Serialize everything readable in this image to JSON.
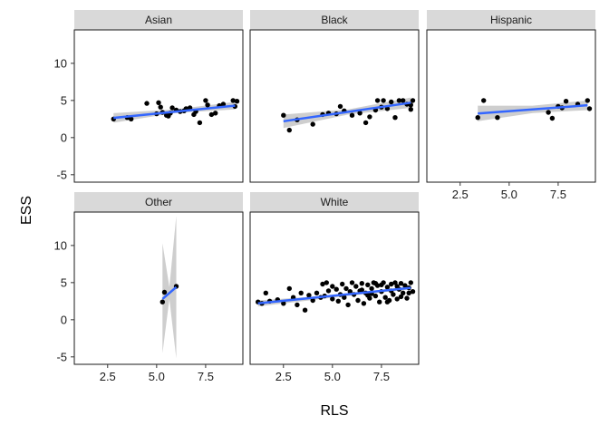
{
  "chart_data": {
    "type": "scatter",
    "facet_layout": {
      "rows": 2,
      "cols": 3
    },
    "xlabel": "RLS",
    "ylabel": "ESS",
    "xlim": [
      0.8,
      9.4
    ],
    "ylim": [
      -6,
      14.5
    ],
    "xticks": [
      2.5,
      5.0,
      7.5
    ],
    "xtick_labels": [
      "2.5",
      "5.0",
      "7.5"
    ],
    "yticks": [
      -5,
      0,
      5,
      10
    ],
    "ytick_labels": [
      "-5",
      "0",
      "5",
      "10"
    ],
    "colors": {
      "points": "#000000",
      "fit_line": "#3366ff",
      "ribbon": "#bdbdbd",
      "strip": "#d9d9d9"
    },
    "panels": [
      {
        "name": "Asian",
        "points": [
          [
            2.8,
            2.5
          ],
          [
            3.5,
            2.7
          ],
          [
            3.7,
            2.5
          ],
          [
            4.5,
            4.6
          ],
          [
            5.0,
            3.2
          ],
          [
            5.1,
            4.7
          ],
          [
            5.2,
            4.1
          ],
          [
            5.3,
            3.4
          ],
          [
            5.5,
            3.0
          ],
          [
            5.6,
            2.9
          ],
          [
            5.7,
            3.3
          ],
          [
            5.8,
            4.0
          ],
          [
            6.0,
            3.7
          ],
          [
            6.2,
            3.5
          ],
          [
            6.4,
            3.6
          ],
          [
            6.5,
            3.9
          ],
          [
            6.7,
            4.0
          ],
          [
            6.9,
            3.1
          ],
          [
            7.0,
            3.5
          ],
          [
            7.2,
            2.0
          ],
          [
            7.5,
            5.0
          ],
          [
            7.6,
            4.4
          ],
          [
            7.8,
            3.1
          ],
          [
            8.0,
            3.3
          ],
          [
            8.2,
            4.3
          ],
          [
            8.4,
            4.5
          ],
          [
            8.9,
            5.0
          ],
          [
            9.0,
            4.2
          ],
          [
            9.1,
            4.9
          ]
        ],
        "fit": {
          "x": [
            2.8,
            9.0
          ],
          "y": [
            2.65,
            4.3
          ]
        },
        "ribbon": {
          "x": [
            2.8,
            5.9,
            9.0
          ],
          "lo": [
            2.0,
            3.3,
            3.8
          ],
          "hi": [
            3.3,
            3.8,
            4.8
          ]
        }
      },
      {
        "name": "Black",
        "points": [
          [
            2.5,
            3.0
          ],
          [
            2.8,
            1.0
          ],
          [
            3.2,
            2.4
          ],
          [
            4.0,
            1.8
          ],
          [
            4.5,
            3.1
          ],
          [
            4.8,
            3.3
          ],
          [
            5.2,
            3.2
          ],
          [
            5.4,
            4.2
          ],
          [
            5.6,
            3.6
          ],
          [
            6.0,
            3.0
          ],
          [
            6.4,
            3.3
          ],
          [
            6.7,
            2.0
          ],
          [
            6.9,
            2.8
          ],
          [
            7.2,
            3.7
          ],
          [
            7.3,
            5.0
          ],
          [
            7.5,
            4.1
          ],
          [
            7.6,
            5.0
          ],
          [
            7.8,
            3.9
          ],
          [
            8.0,
            4.8
          ],
          [
            8.2,
            2.7
          ],
          [
            8.4,
            5.0
          ],
          [
            8.6,
            5.0
          ],
          [
            8.8,
            4.5
          ],
          [
            9.0,
            3.8
          ],
          [
            9.1,
            5.0
          ],
          [
            9.0,
            4.4
          ]
        ],
        "fit": {
          "x": [
            2.5,
            9.0
          ],
          "y": [
            2.2,
            4.7
          ]
        },
        "ribbon": {
          "x": [
            2.5,
            5.8,
            9.0
          ],
          "lo": [
            1.3,
            3.1,
            4.0
          ],
          "hi": [
            3.1,
            3.8,
            5.4
          ]
        }
      },
      {
        "name": "Hispanic",
        "points": [
          [
            3.4,
            2.7
          ],
          [
            3.7,
            5.0
          ],
          [
            4.4,
            2.7
          ],
          [
            7.0,
            3.4
          ],
          [
            7.2,
            2.6
          ],
          [
            7.5,
            4.2
          ],
          [
            7.7,
            4.0
          ],
          [
            7.9,
            4.9
          ],
          [
            8.5,
            4.5
          ],
          [
            9.0,
            5.0
          ],
          [
            9.1,
            3.9
          ]
        ],
        "fit": {
          "x": [
            3.4,
            9.0
          ],
          "y": [
            3.25,
            4.35
          ]
        },
        "ribbon": {
          "x": [
            3.4,
            6.2,
            9.0
          ],
          "lo": [
            2.2,
            3.3,
            3.7
          ],
          "hi": [
            4.3,
            4.3,
            5.0
          ]
        }
      },
      {
        "name": "Other",
        "points": [
          [
            5.3,
            2.4
          ],
          [
            5.4,
            3.7
          ],
          [
            6.0,
            4.5
          ]
        ],
        "fit": {
          "x": [
            5.3,
            6.0
          ],
          "y": [
            2.8,
            4.4
          ]
        },
        "ribbon": {
          "x": [
            5.3,
            5.65,
            6.0
          ],
          "lo": [
            -4.5,
            2.8,
            -5.2
          ],
          "hi": [
            10.3,
            4.4,
            14.0
          ]
        }
      },
      {
        "name": "White",
        "points": [
          [
            1.2,
            2.4
          ],
          [
            1.4,
            2.2
          ],
          [
            1.6,
            3.6
          ],
          [
            1.8,
            2.5
          ],
          [
            2.2,
            2.7
          ],
          [
            2.5,
            2.2
          ],
          [
            2.8,
            4.2
          ],
          [
            3.0,
            3.0
          ],
          [
            3.2,
            2.0
          ],
          [
            3.4,
            3.6
          ],
          [
            3.6,
            1.3
          ],
          [
            3.8,
            3.3
          ],
          [
            4.0,
            2.6
          ],
          [
            4.2,
            3.6
          ],
          [
            4.4,
            3.0
          ],
          [
            4.5,
            4.8
          ],
          [
            4.6,
            3.2
          ],
          [
            4.7,
            5.0
          ],
          [
            4.8,
            3.9
          ],
          [
            5.0,
            4.5
          ],
          [
            5.0,
            2.8
          ],
          [
            5.2,
            4.1
          ],
          [
            5.3,
            2.5
          ],
          [
            5.4,
            3.4
          ],
          [
            5.5,
            4.8
          ],
          [
            5.6,
            3.0
          ],
          [
            5.7,
            4.2
          ],
          [
            5.8,
            2.0
          ],
          [
            5.9,
            3.8
          ],
          [
            6.0,
            5.0
          ],
          [
            6.1,
            3.4
          ],
          [
            6.2,
            4.5
          ],
          [
            6.3,
            2.6
          ],
          [
            6.4,
            3.9
          ],
          [
            6.5,
            4.9
          ],
          [
            6.6,
            2.2
          ],
          [
            6.7,
            3.6
          ],
          [
            6.8,
            4.7
          ],
          [
            6.9,
            2.9
          ],
          [
            7.0,
            4.2
          ],
          [
            7.1,
            5.0
          ],
          [
            7.2,
            3.2
          ],
          [
            7.3,
            4.6
          ],
          [
            7.4,
            2.4
          ],
          [
            7.5,
            3.8
          ],
          [
            7.6,
            5.0
          ],
          [
            7.7,
            3.0
          ],
          [
            7.8,
            4.4
          ],
          [
            7.9,
            2.6
          ],
          [
            8.0,
            4.8
          ],
          [
            8.1,
            3.4
          ],
          [
            8.2,
            5.0
          ],
          [
            8.3,
            2.8
          ],
          [
            8.4,
            4.1
          ],
          [
            8.5,
            4.9
          ],
          [
            8.6,
            3.6
          ],
          [
            8.7,
            4.6
          ],
          [
            8.8,
            2.9
          ],
          [
            8.9,
            4.3
          ],
          [
            9.0,
            5.0
          ],
          [
            9.1,
            3.8
          ],
          [
            6.5,
            4.0
          ],
          [
            7.0,
            3.5
          ],
          [
            7.5,
            4.7
          ],
          [
            8.0,
            3.9
          ],
          [
            8.5,
            3.1
          ],
          [
            7.2,
            4.9
          ],
          [
            6.8,
            3.3
          ],
          [
            8.3,
            4.5
          ],
          [
            7.8,
            2.4
          ],
          [
            8.9,
            3.6
          ]
        ],
        "fit": {
          "x": [
            1.2,
            9.0
          ],
          "y": [
            2.2,
            4.3
          ]
        },
        "ribbon": {
          "x": [
            1.2,
            5.1,
            9.0
          ],
          "lo": [
            1.8,
            3.0,
            4.1
          ],
          "hi": [
            2.6,
            3.3,
            4.5
          ]
        }
      }
    ]
  }
}
